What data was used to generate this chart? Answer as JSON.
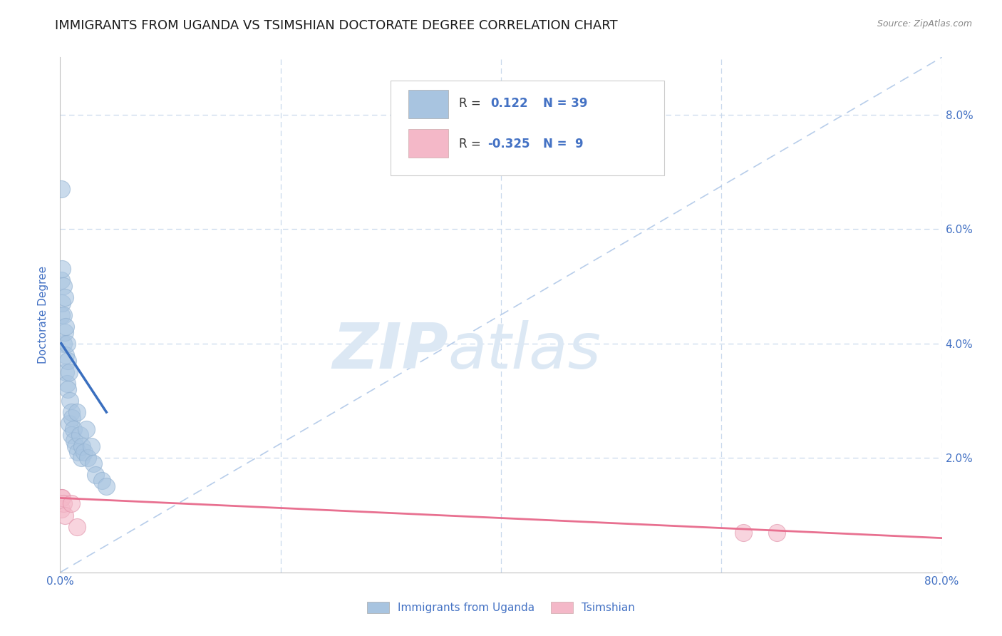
{
  "title": "IMMIGRANTS FROM UGANDA VS TSIMSHIAN DOCTORATE DEGREE CORRELATION CHART",
  "source": "Source: ZipAtlas.com",
  "ylabel": "Doctorate Degree",
  "xlim": [
    0.0,
    0.8
  ],
  "ylim": [
    0.0,
    0.09
  ],
  "xticks": [
    0.0,
    0.2,
    0.4,
    0.6,
    0.8
  ],
  "xtick_labels": [
    "0.0%",
    "",
    "",
    "",
    "80.0%"
  ],
  "yticks": [
    0.0,
    0.02,
    0.04,
    0.06,
    0.08
  ],
  "ytick_labels_right": [
    "",
    "2.0%",
    "4.0%",
    "6.0%",
    "8.0%"
  ],
  "blue_R": 0.122,
  "blue_N": 39,
  "pink_R": -0.325,
  "pink_N": 9,
  "blue_color": "#a8c4e0",
  "pink_color": "#f4b8c8",
  "blue_line_color": "#3a6fbf",
  "pink_line_color": "#e87090",
  "diagonal_color": "#b0c8e8",
  "legend_label_blue": "Immigrants from Uganda",
  "legend_label_pink": "Tsimshian",
  "blue_scatter_x": [
    0.001,
    0.001,
    0.001,
    0.002,
    0.002,
    0.003,
    0.003,
    0.003,
    0.004,
    0.004,
    0.005,
    0.005,
    0.005,
    0.006,
    0.006,
    0.007,
    0.007,
    0.008,
    0.008,
    0.009,
    0.01,
    0.01,
    0.011,
    0.012,
    0.013,
    0.014,
    0.015,
    0.016,
    0.018,
    0.019,
    0.02,
    0.022,
    0.024,
    0.025,
    0.028,
    0.03,
    0.032,
    0.038,
    0.042
  ],
  "blue_scatter_y": [
    0.067,
    0.051,
    0.045,
    0.053,
    0.047,
    0.05,
    0.045,
    0.04,
    0.048,
    0.042,
    0.043,
    0.038,
    0.035,
    0.04,
    0.033,
    0.037,
    0.032,
    0.035,
    0.026,
    0.03,
    0.028,
    0.024,
    0.027,
    0.025,
    0.023,
    0.022,
    0.028,
    0.021,
    0.024,
    0.02,
    0.022,
    0.021,
    0.025,
    0.02,
    0.022,
    0.019,
    0.017,
    0.016,
    0.015
  ],
  "pink_scatter_x": [
    0.001,
    0.001,
    0.002,
    0.003,
    0.004,
    0.01,
    0.015,
    0.62,
    0.65
  ],
  "pink_scatter_y": [
    0.013,
    0.011,
    0.013,
    0.012,
    0.01,
    0.012,
    0.008,
    0.007,
    0.007
  ],
  "blue_line_x": [
    0.001,
    0.042
  ],
  "blue_line_y": [
    0.04,
    0.028
  ],
  "pink_line_x": [
    0.0,
    0.8
  ],
  "pink_line_y": [
    0.013,
    0.006
  ],
  "watermark_zip": "ZIP",
  "watermark_atlas": "atlas",
  "watermark_color": "#dce8f4",
  "title_color": "#1a1a1a",
  "axis_label_color": "#4472c4",
  "tick_label_color": "#4472c4",
  "grid_color": "#c8d8ec",
  "title_fontsize": 13,
  "axis_label_fontsize": 11,
  "tick_fontsize": 11,
  "legend_fontsize": 11,
  "source_color": "#888888"
}
